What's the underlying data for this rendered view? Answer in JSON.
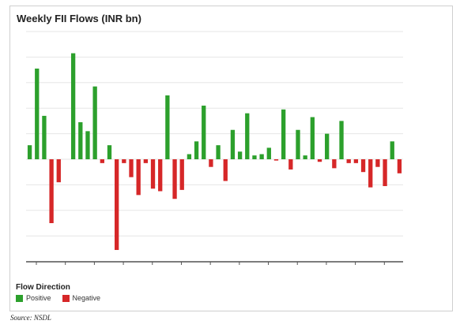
{
  "chart_data": {
    "type": "bar",
    "title": "Weekly FII Flows (INR bn)",
    "xlabel": "",
    "ylabel": "",
    "ylim": [
      -80,
      100
    ],
    "grid": true,
    "legend_title": "Flow Direction",
    "legend_placement": "bottom-left",
    "series_labels": {
      "positive": "Positive",
      "negative": "Negative"
    },
    "colors": {
      "positive": "#2ca02c",
      "negative": "#d62728",
      "grid": "#e6e6e6",
      "axis": "#555555"
    },
    "values": [
      11,
      71,
      34,
      -50,
      -18,
      0,
      83,
      29,
      22,
      57,
      -3,
      11,
      -71,
      -3,
      -14,
      -28,
      -3,
      -23,
      -25,
      50,
      -31,
      -24,
      4,
      14,
      42,
      -6,
      11,
      -17,
      23,
      6,
      36,
      3,
      4,
      9,
      -1,
      39,
      -8,
      23,
      3,
      33,
      -2,
      20,
      -7,
      30,
      -3,
      -3,
      -10,
      -22,
      -6,
      -21,
      14,
      -11
    ]
  },
  "source": "Source: NSDL"
}
